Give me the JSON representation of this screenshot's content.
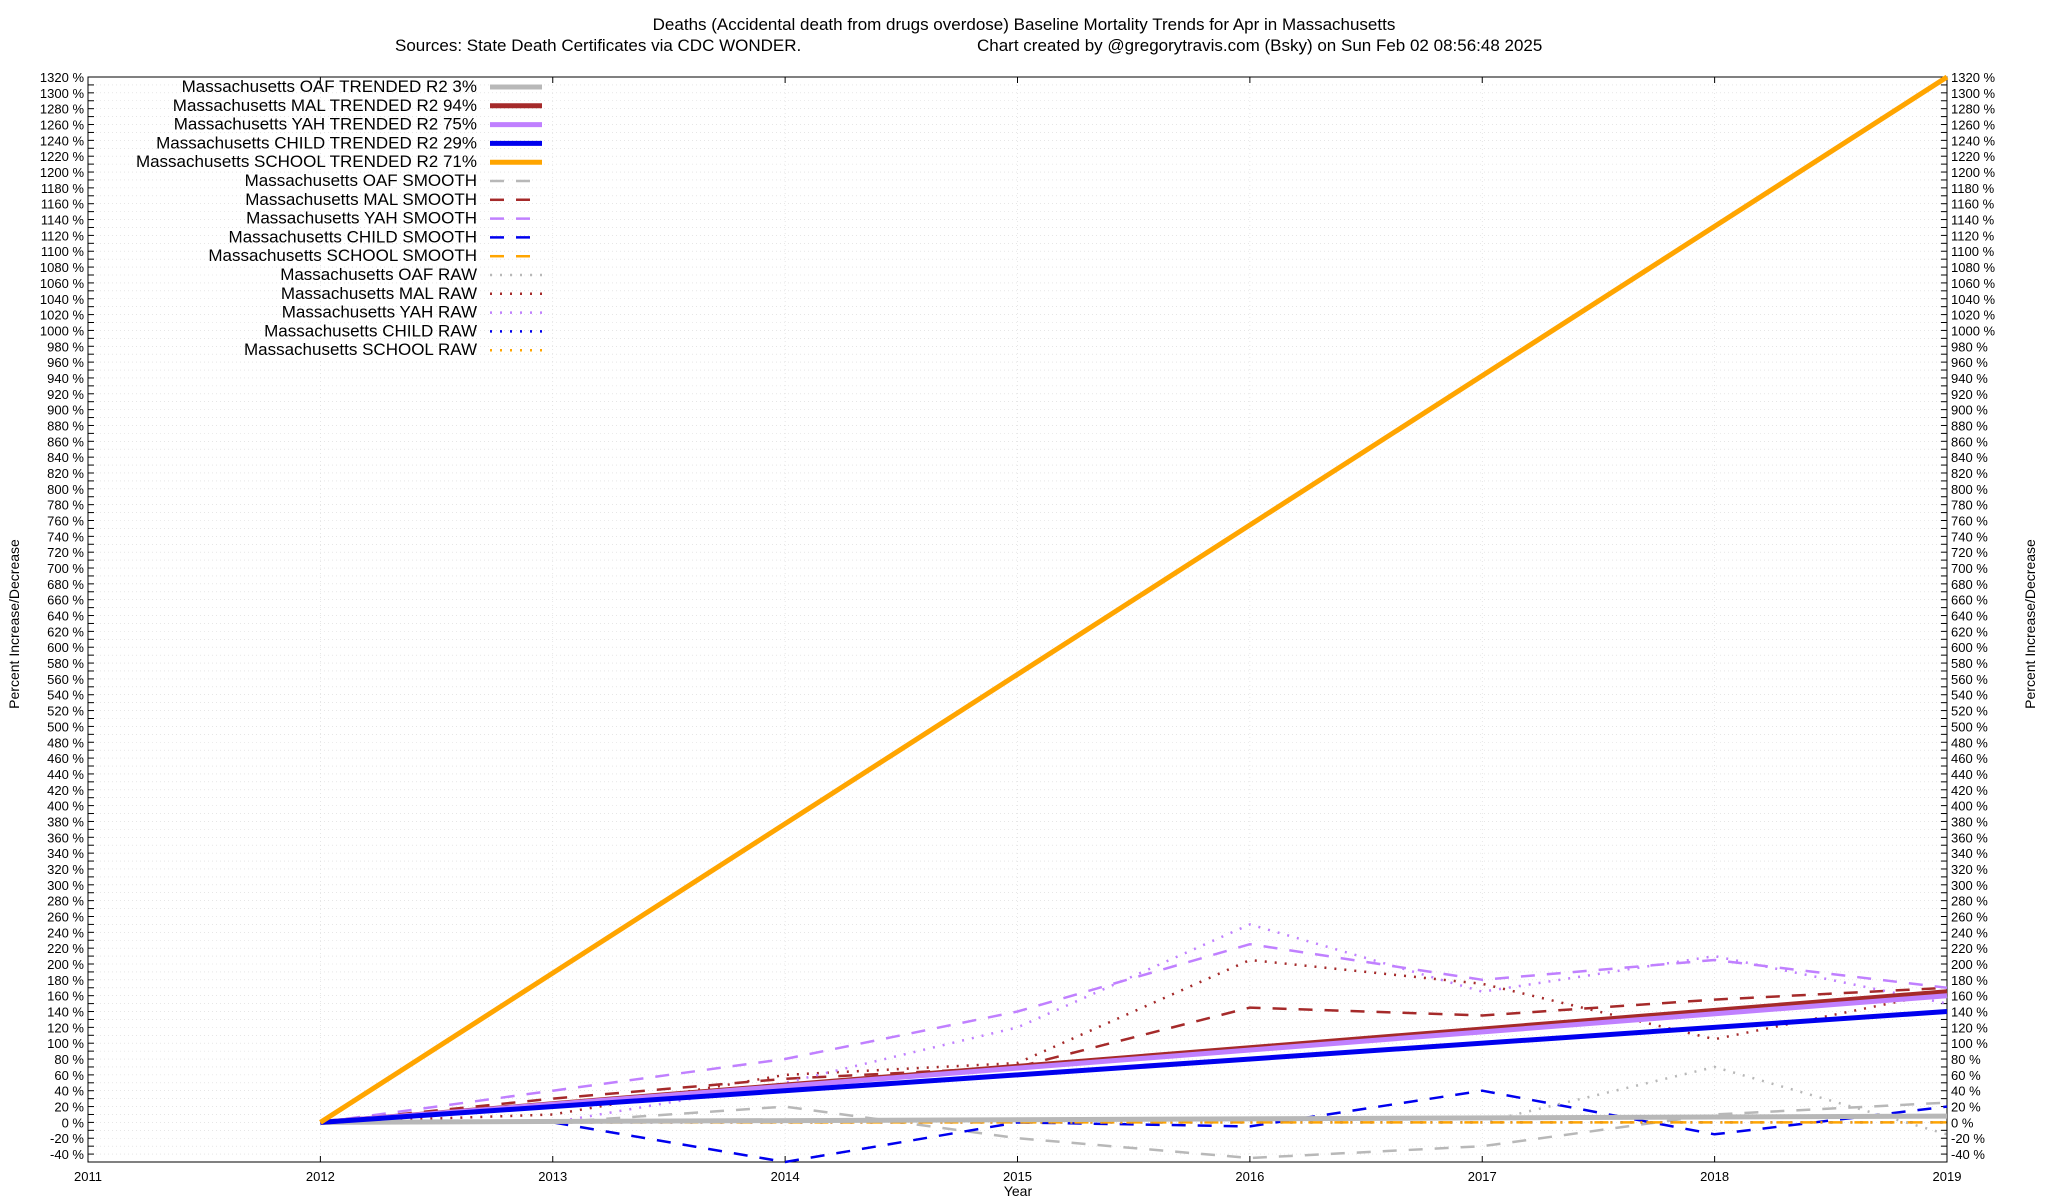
{
  "chart_data": {
    "type": "line",
    "title": "Deaths (Accidental death from drugs overdose)  Baseline Mortality Trends for Apr in Massachusetts",
    "subtitle_left": "Sources: State Death Certificates via CDC WONDER.",
    "subtitle_right": "Chart created by @gregorytravis.com (Bsky) on Sun Feb 02 08:56:48 2025",
    "xlabel": "Year",
    "ylabel": "Percent Increase/Decrease",
    "xlim": [
      2011,
      2019
    ],
    "ylim": [
      -50,
      1320
    ],
    "x_ticks": [
      "2011",
      "2012",
      "2013",
      "2014",
      "2015",
      "2016",
      "2017",
      "2018",
      "2019"
    ],
    "grid": true,
    "legend_position": "top-left",
    "series": [
      {
        "name": "Massachusetts OAF TRENDED R2  3%",
        "style": "trend",
        "color": "#b8b8b8",
        "x": [
          2012,
          2019
        ],
        "y": [
          0,
          8
        ]
      },
      {
        "name": "Massachusetts MAL TRENDED R2  94%",
        "style": "trend",
        "color": "#a52a2a",
        "x": [
          2012,
          2019
        ],
        "y": [
          0,
          165
        ]
      },
      {
        "name": "Massachusetts YAH TRENDED R2  75%",
        "style": "trend",
        "color": "#c080ff",
        "x": [
          2012,
          2019
        ],
        "y": [
          0,
          160
        ]
      },
      {
        "name": "Massachusetts CHILD TRENDED R2  29%",
        "style": "trend",
        "color": "#0000ee",
        "x": [
          2012,
          2019
        ],
        "y": [
          0,
          140
        ]
      },
      {
        "name": "Massachusetts SCHOOL TRENDED R2  71%",
        "style": "trend",
        "color": "#ffa500",
        "x": [
          2012,
          2019
        ],
        "y": [
          0,
          1320
        ]
      },
      {
        "name": "Massachusetts OAF SMOOTH",
        "style": "smooth",
        "color": "#b8b8b8",
        "x": [
          2012,
          2013,
          2014,
          2015,
          2016,
          2017,
          2018,
          2019
        ],
        "y": [
          0,
          0,
          20,
          -20,
          -45,
          -30,
          10,
          25
        ]
      },
      {
        "name": "Massachusetts MAL SMOOTH",
        "style": "smooth",
        "color": "#a52a2a",
        "x": [
          2012,
          2013,
          2014,
          2015,
          2016,
          2017,
          2018,
          2019
        ],
        "y": [
          0,
          30,
          55,
          70,
          145,
          135,
          155,
          170
        ]
      },
      {
        "name": "Massachusetts YAH SMOOTH",
        "style": "smooth",
        "color": "#c080ff",
        "x": [
          2012,
          2013,
          2014,
          2015,
          2016,
          2017,
          2018,
          2019
        ],
        "y": [
          0,
          40,
          80,
          140,
          225,
          180,
          205,
          170
        ]
      },
      {
        "name": "Massachusetts CHILD SMOOTH",
        "style": "smooth",
        "color": "#0000ee",
        "x": [
          2012,
          2013,
          2014,
          2015,
          2016,
          2017,
          2018,
          2019
        ],
        "y": [
          0,
          0,
          -50,
          0,
          -5,
          40,
          -15,
          20
        ]
      },
      {
        "name": "Massachusetts SCHOOL SMOOTH",
        "style": "smooth",
        "color": "#ffa500",
        "x": [
          2012,
          2013,
          2014,
          2015,
          2016,
          2017,
          2018,
          2019
        ],
        "y": [
          0,
          0,
          0,
          0,
          0,
          0,
          0,
          0
        ]
      },
      {
        "name": "Massachusetts OAF RAW",
        "style": "raw",
        "color": "#b8b8b8",
        "x": [
          2012,
          2013,
          2014,
          2015,
          2016,
          2017,
          2018,
          2019
        ],
        "y": [
          0,
          0,
          0,
          0,
          0,
          0,
          70,
          -15
        ]
      },
      {
        "name": "Massachusetts MAL RAW",
        "style": "raw",
        "color": "#a52a2a",
        "x": [
          2012,
          2013,
          2014,
          2015,
          2016,
          2017,
          2018,
          2019
        ],
        "y": [
          0,
          10,
          60,
          75,
          205,
          175,
          105,
          165
        ]
      },
      {
        "name": "Massachusetts YAH RAW",
        "style": "raw",
        "color": "#c080ff",
        "x": [
          2012,
          2013,
          2014,
          2015,
          2016,
          2017,
          2018,
          2019
        ],
        "y": [
          0,
          0,
          50,
          120,
          250,
          165,
          210,
          150
        ]
      },
      {
        "name": "Massachusetts CHILD RAW",
        "style": "raw",
        "color": "#0000ee",
        "x": [
          2012,
          2013,
          2014,
          2015,
          2016,
          2017,
          2018,
          2019
        ],
        "y": [
          0,
          0,
          0,
          0,
          0,
          0,
          0,
          0
        ]
      },
      {
        "name": "Massachusetts SCHOOL RAW",
        "style": "raw",
        "color": "#ffa500",
        "x": [
          2012,
          2013,
          2014,
          2015,
          2016,
          2017,
          2018,
          2019
        ],
        "y": [
          0,
          0,
          0,
          0,
          0,
          0,
          0,
          0
        ]
      }
    ]
  }
}
